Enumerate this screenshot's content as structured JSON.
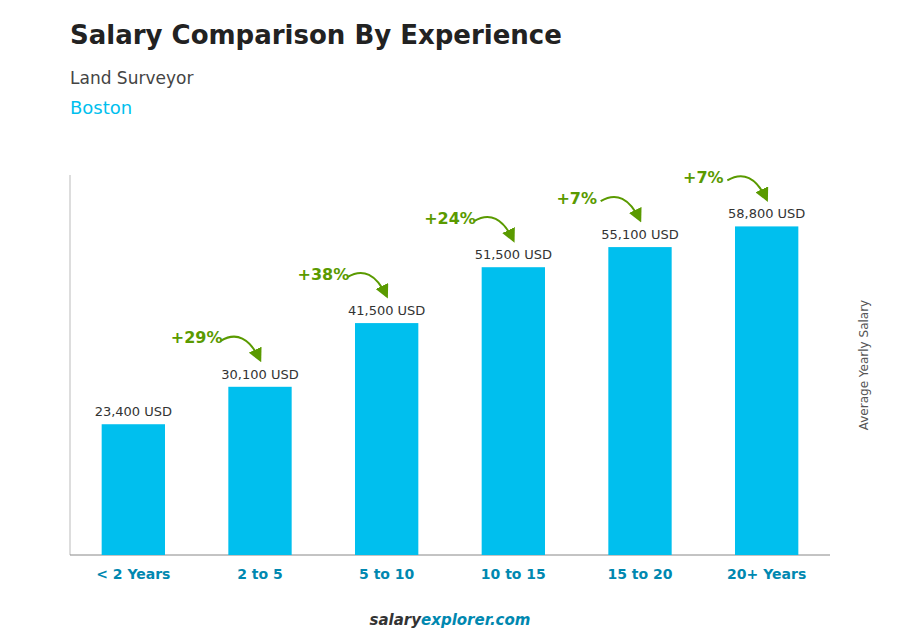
{
  "chart_data": {
    "type": "bar",
    "title": "Salary Comparison By Experience",
    "subtitle": [
      "Land Surveyor",
      "Boston"
    ],
    "y_label": "Average Yearly Salary",
    "categories": [
      "< 2 Years",
      "2 to 5",
      "5 to 10",
      "10 to 15",
      "15 to 20",
      "20+ Years"
    ],
    "values": [
      23400,
      30100,
      41500,
      51500,
      55100,
      58800
    ],
    "value_labels": [
      "23,400 USD",
      "30,100 USD",
      "41,500 USD",
      "51,500 USD",
      "55,100 USD",
      "58,800 USD"
    ],
    "data_labels": true,
    "annotations": [
      "+29%",
      "+38%",
      "+24%",
      "+7%",
      "+7%"
    ],
    "footer": [
      "salary",
      "explorer.com"
    ],
    "color": "#00BFEE",
    "ylim": [
      0,
      68000
    ],
    "tick_labels": "x",
    "grid": false
  }
}
